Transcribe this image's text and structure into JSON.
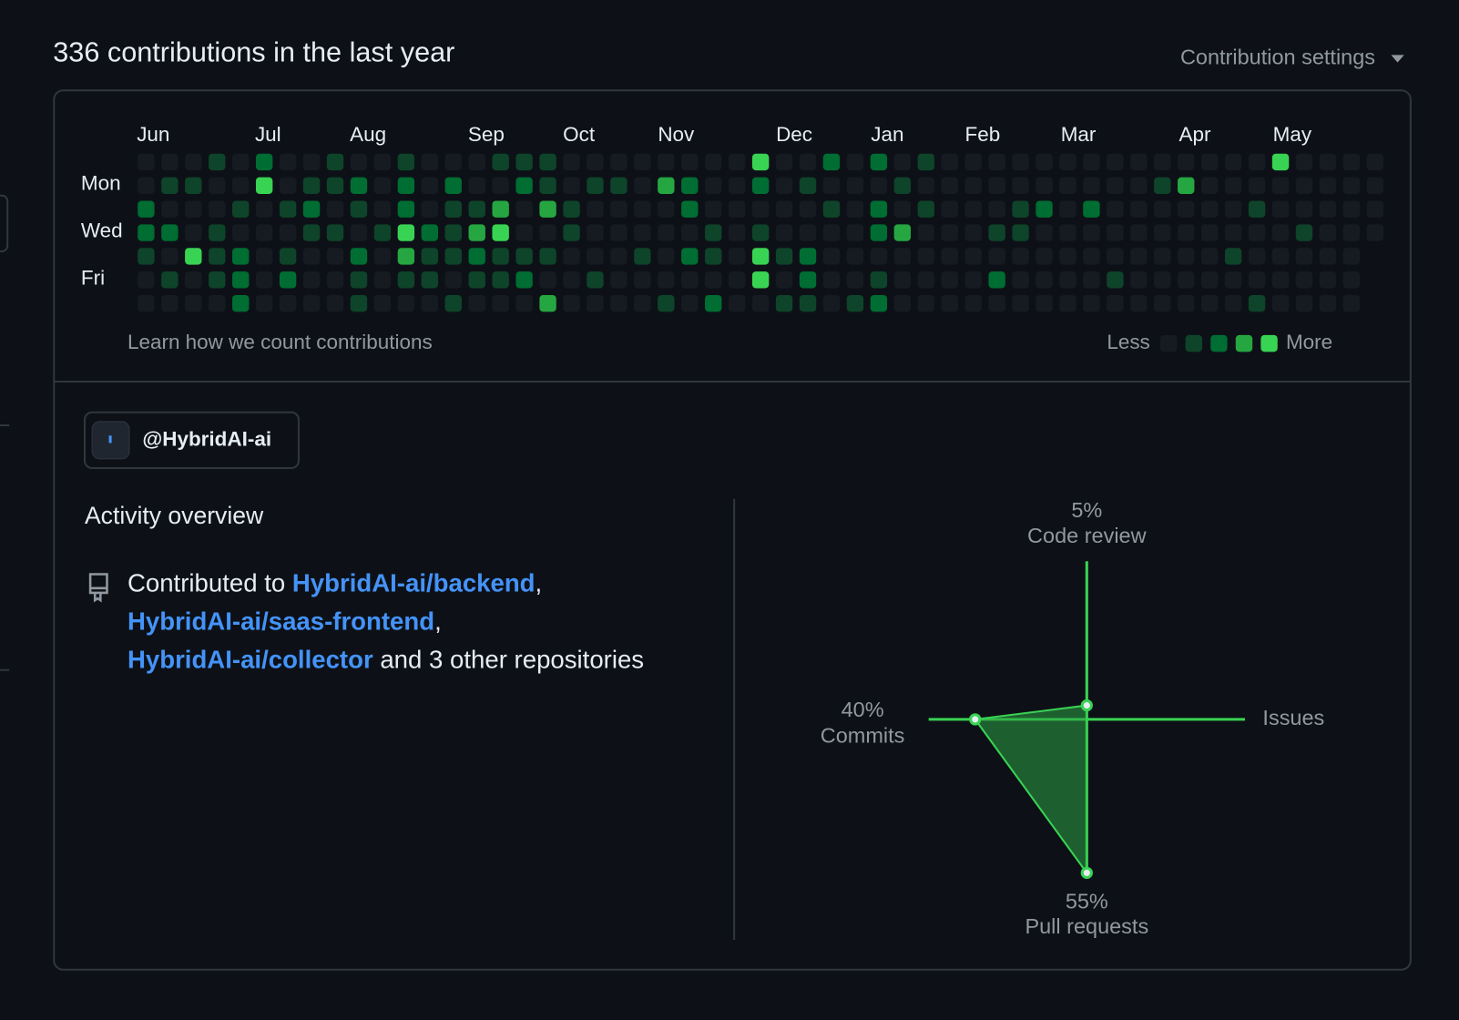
{
  "header": {
    "title": "336 contributions in the last year",
    "settings": "Contribution settings"
  },
  "contributions": {
    "months": [
      "Jun",
      "Jul",
      "Aug",
      "Sep",
      "Oct",
      "Nov",
      "Dec",
      "Jan",
      "Feb",
      "Mar",
      "Apr",
      "May"
    ],
    "days": [
      "Mon",
      "Wed",
      "Fri"
    ],
    "colors": [
      "#161b22",
      "#0e4429",
      "#006d32",
      "#26a641",
      "#39d353"
    ],
    "levels": [
      [
        0,
        0,
        0,
        1,
        0,
        2,
        0,
        0,
        1,
        0,
        0,
        1,
        0,
        0,
        0,
        1,
        1,
        1,
        0,
        0,
        0,
        0,
        0,
        0,
        0,
        0,
        4,
        0,
        0,
        2,
        0,
        2,
        0,
        1,
        0,
        0,
        0,
        0,
        0,
        0,
        0,
        0,
        0,
        0,
        0,
        0,
        0,
        0,
        4,
        0,
        0,
        0,
        0
      ],
      [
        0,
        1,
        1,
        0,
        0,
        4,
        0,
        1,
        1,
        2,
        0,
        2,
        0,
        2,
        0,
        0,
        2,
        1,
        0,
        1,
        1,
        0,
        3,
        2,
        0,
        0,
        2,
        0,
        1,
        0,
        0,
        0,
        1,
        0,
        0,
        0,
        0,
        0,
        0,
        0,
        0,
        0,
        0,
        1,
        3,
        0,
        0,
        0,
        0,
        0,
        0,
        0,
        0
      ],
      [
        2,
        0,
        0,
        0,
        1,
        0,
        1,
        2,
        0,
        1,
        0,
        2,
        0,
        1,
        1,
        3,
        0,
        3,
        1,
        0,
        0,
        0,
        0,
        2,
        0,
        0,
        0,
        0,
        0,
        1,
        0,
        2,
        0,
        1,
        0,
        0,
        0,
        1,
        2,
        0,
        2,
        0,
        0,
        0,
        0,
        0,
        0,
        1,
        0,
        0,
        0,
        0,
        0
      ],
      [
        2,
        2,
        0,
        1,
        0,
        0,
        0,
        1,
        1,
        0,
        1,
        4,
        2,
        1,
        3,
        4,
        0,
        0,
        1,
        0,
        0,
        0,
        0,
        0,
        1,
        0,
        1,
        0,
        0,
        0,
        0,
        2,
        3,
        0,
        0,
        0,
        1,
        1,
        0,
        0,
        0,
        0,
        0,
        0,
        0,
        0,
        0,
        0,
        0,
        1,
        0,
        0,
        0
      ],
      [
        1,
        0,
        4,
        1,
        2,
        0,
        1,
        0,
        0,
        2,
        0,
        3,
        1,
        1,
        2,
        1,
        1,
        1,
        0,
        0,
        0,
        1,
        0,
        2,
        1,
        0,
        4,
        1,
        2,
        0,
        0,
        0,
        0,
        0,
        0,
        0,
        0,
        0,
        0,
        0,
        0,
        0,
        0,
        0,
        0,
        0,
        1,
        0,
        0,
        0,
        0,
        0,
        null
      ],
      [
        0,
        1,
        0,
        1,
        2,
        0,
        2,
        0,
        0,
        1,
        0,
        1,
        1,
        0,
        1,
        1,
        2,
        0,
        0,
        1,
        0,
        0,
        0,
        0,
        0,
        0,
        4,
        0,
        2,
        0,
        0,
        1,
        0,
        0,
        0,
        0,
        2,
        0,
        0,
        0,
        0,
        1,
        0,
        0,
        0,
        0,
        0,
        0,
        0,
        0,
        0,
        0,
        null
      ],
      [
        0,
        0,
        0,
        0,
        2,
        0,
        0,
        0,
        0,
        1,
        0,
        0,
        0,
        1,
        0,
        0,
        0,
        3,
        0,
        0,
        0,
        0,
        1,
        0,
        2,
        0,
        0,
        1,
        1,
        0,
        1,
        2,
        0,
        0,
        0,
        0,
        0,
        0,
        0,
        0,
        0,
        0,
        0,
        0,
        0,
        0,
        0,
        1,
        0,
        0,
        0,
        0,
        null
      ]
    ],
    "learn": "Learn how we count contributions",
    "less": "Less",
    "more": "More"
  },
  "account": "@HybridAI-ai",
  "activity_overview": {
    "title": "Activity overview",
    "lines": [
      [
        {
          "text": "Contributed to "
        },
        {
          "link": "HybridAI-ai/backend"
        },
        {
          "text": ","
        }
      ],
      [
        {
          "link": "HybridAI-ai/saas-frontend"
        },
        {
          "text": ","
        }
      ],
      [
        {
          "link": "HybridAI-ai/collector"
        },
        {
          "text": " and 3 other repositories"
        }
      ]
    ]
  },
  "chart_data": {
    "type": "radar",
    "categories": [
      "Code review",
      "Issues",
      "Pull requests",
      "Commits"
    ],
    "values": [
      5,
      0,
      55,
      40
    ],
    "value_labels": [
      "5%",
      null,
      "55%",
      "40%"
    ],
    "color": "#39d353"
  }
}
